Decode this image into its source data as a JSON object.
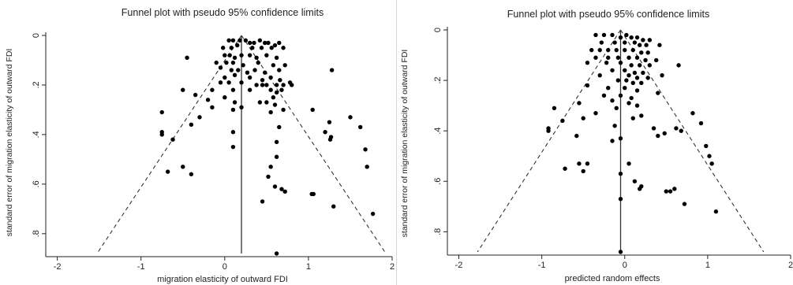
{
  "chart_data": [
    {
      "type": "scatter",
      "title": "Funnel plot with pseudo 95% confidence limits",
      "xlabel": "migration elasticity of outward FDI",
      "ylabel": "standard error of migration elasticity of outward FDI",
      "xlim": [
        -2.1,
        2.0
      ],
      "ylim": [
        0,
        0.88
      ],
      "y_reversed": true,
      "xticks": [
        -2,
        -1,
        0,
        1,
        2
      ],
      "xtick_labels": [
        "-2",
        "-1",
        "0",
        "1",
        "2"
      ],
      "yticks": [
        0,
        0.2,
        0.4,
        0.6,
        0.8
      ],
      "ytick_labels": [
        "0",
        ".2",
        ".4",
        ".6",
        ".8"
      ],
      "pooled_estimate": 0.2,
      "funnel_bottom_se": 0.88,
      "points": [
        [
          0.05,
          0.02
        ],
        [
          0.1,
          0.02
        ],
        [
          0.18,
          0.02
        ],
        [
          0.25,
          0.02
        ],
        [
          0.3,
          0.03
        ],
        [
          0.35,
          0.03
        ],
        [
          0.42,
          0.02
        ],
        [
          0.48,
          0.03
        ],
        [
          0.52,
          0.03
        ],
        [
          0.6,
          0.04
        ],
        [
          0.65,
          0.03
        ],
        [
          -0.02,
          0.05
        ],
        [
          0.08,
          0.05
        ],
        [
          0.15,
          0.04
        ],
        [
          0.33,
          0.05
        ],
        [
          0.44,
          0.05
        ],
        [
          0.56,
          0.05
        ],
        [
          0.7,
          0.05
        ],
        [
          0.0,
          0.08
        ],
        [
          0.06,
          0.08
        ],
        [
          0.12,
          0.09
        ],
        [
          0.2,
          0.08
        ],
        [
          0.3,
          0.08
        ],
        [
          0.38,
          0.09
        ],
        [
          0.5,
          0.08
        ],
        [
          0.62,
          0.09
        ],
        [
          -0.1,
          0.11
        ],
        [
          0.02,
          0.11
        ],
        [
          0.1,
          0.11
        ],
        [
          0.22,
          0.12
        ],
        [
          0.4,
          0.11
        ],
        [
          0.58,
          0.12
        ],
        [
          0.72,
          0.12
        ],
        [
          -0.45,
          0.09
        ],
        [
          -0.05,
          0.13
        ],
        [
          0.08,
          0.14
        ],
        [
          0.16,
          0.14
        ],
        [
          0.27,
          0.15
        ],
        [
          0.36,
          0.14
        ],
        [
          0.48,
          0.15
        ],
        [
          0.65,
          0.14
        ],
        [
          0.0,
          0.17
        ],
        [
          0.12,
          0.16
        ],
        [
          0.3,
          0.17
        ],
        [
          0.45,
          0.18
        ],
        [
          0.55,
          0.17
        ],
        [
          0.66,
          0.18
        ],
        [
          0.78,
          0.19
        ],
        [
          1.28,
          0.14
        ],
        [
          -0.05,
          0.19
        ],
        [
          0.05,
          0.19
        ],
        [
          0.2,
          0.19
        ],
        [
          0.38,
          0.2
        ],
        [
          0.45,
          0.2
        ],
        [
          0.5,
          0.2
        ],
        [
          0.62,
          0.2
        ],
        [
          0.7,
          0.2
        ],
        [
          0.8,
          0.2
        ],
        [
          -0.15,
          0.22
        ],
        [
          0.1,
          0.22
        ],
        [
          0.3,
          0.22
        ],
        [
          0.55,
          0.22
        ],
        [
          0.62,
          0.23
        ],
        [
          0.68,
          0.22
        ],
        [
          0.58,
          0.25
        ],
        [
          -0.5,
          0.22
        ],
        [
          -0.35,
          0.24
        ],
        [
          0.0,
          0.25
        ],
        [
          0.12,
          0.27
        ],
        [
          0.42,
          0.27
        ],
        [
          0.5,
          0.27
        ],
        [
          0.6,
          0.28
        ],
        [
          -0.15,
          0.29
        ],
        [
          0.2,
          0.29
        ],
        [
          -0.2,
          0.26
        ],
        [
          0.1,
          0.3
        ],
        [
          0.7,
          0.3
        ],
        [
          0.55,
          0.31
        ],
        [
          -0.75,
          0.31
        ],
        [
          -0.3,
          0.33
        ],
        [
          -0.4,
          0.36
        ],
        [
          0.65,
          0.37
        ],
        [
          1.05,
          0.3
        ],
        [
          1.5,
          0.33
        ],
        [
          1.25,
          0.35
        ],
        [
          1.62,
          0.37
        ],
        [
          1.2,
          0.39
        ],
        [
          1.27,
          0.41
        ],
        [
          1.26,
          0.42
        ],
        [
          0.1,
          0.39
        ],
        [
          -0.75,
          0.39
        ],
        [
          -0.75,
          0.4
        ],
        [
          -0.62,
          0.42
        ],
        [
          0.1,
          0.45
        ],
        [
          0.62,
          0.43
        ],
        [
          1.68,
          0.46
        ],
        [
          1.7,
          0.53
        ],
        [
          0.62,
          0.49
        ],
        [
          0.55,
          0.53
        ],
        [
          0.52,
          0.57
        ],
        [
          -0.5,
          0.53
        ],
        [
          -0.68,
          0.55
        ],
        [
          -0.4,
          0.56
        ],
        [
          0.6,
          0.61
        ],
        [
          0.72,
          0.63
        ],
        [
          0.68,
          0.62
        ],
        [
          1.04,
          0.64
        ],
        [
          1.06,
          0.64
        ],
        [
          0.45,
          0.67
        ],
        [
          1.3,
          0.69
        ],
        [
          1.77,
          0.72
        ],
        [
          0.62,
          0.88
        ]
      ]
    },
    {
      "type": "scatter",
      "title": "Funnel plot with pseudo 95% confidence limits",
      "xlabel": "predicted random effects",
      "ylabel": "standard error of migration elasticity of outward FDI",
      "xlim": [
        -2.1,
        2.0
      ],
      "ylim": [
        0,
        0.88
      ],
      "y_reversed": true,
      "xticks": [
        -2,
        -1,
        0,
        1,
        2
      ],
      "xtick_labels": [
        "-2",
        "-1",
        "0",
        "1",
        "2"
      ],
      "yticks": [
        0,
        0.2,
        0.4,
        0.6,
        0.8
      ],
      "ytick_labels": [
        "0",
        ".2",
        ".4",
        ".6",
        ".8"
      ],
      "pooled_estimate": -0.05,
      "funnel_bottom_se": 0.88,
      "points": [
        [
          -0.35,
          0.02
        ],
        [
          -0.25,
          0.02
        ],
        [
          -0.15,
          0.02
        ],
        [
          -0.05,
          0.03
        ],
        [
          0.02,
          0.02
        ],
        [
          0.08,
          0.03
        ],
        [
          0.15,
          0.03
        ],
        [
          0.22,
          0.04
        ],
        [
          0.3,
          0.04
        ],
        [
          -0.28,
          0.05
        ],
        [
          -0.12,
          0.05
        ],
        [
          0.0,
          0.05
        ],
        [
          0.12,
          0.05
        ],
        [
          0.18,
          0.06
        ],
        [
          0.26,
          0.06
        ],
        [
          0.42,
          0.06
        ],
        [
          -0.4,
          0.08
        ],
        [
          -0.3,
          0.08
        ],
        [
          -0.2,
          0.08
        ],
        [
          -0.1,
          0.08
        ],
        [
          0.0,
          0.08
        ],
        [
          0.1,
          0.08
        ],
        [
          0.2,
          0.09
        ],
        [
          0.28,
          0.09
        ],
        [
          -0.35,
          0.11
        ],
        [
          -0.2,
          0.11
        ],
        [
          -0.08,
          0.11
        ],
        [
          0.05,
          0.11
        ],
        [
          0.15,
          0.11
        ],
        [
          0.25,
          0.12
        ],
        [
          0.38,
          0.12
        ],
        [
          -0.45,
          0.13
        ],
        [
          -0.22,
          0.13
        ],
        [
          -0.05,
          0.13
        ],
        [
          0.08,
          0.14
        ],
        [
          0.18,
          0.14
        ],
        [
          0.3,
          0.14
        ],
        [
          0.65,
          0.14
        ],
        [
          -0.15,
          0.16
        ],
        [
          0.0,
          0.16
        ],
        [
          0.12,
          0.17
        ],
        [
          0.22,
          0.17
        ],
        [
          -0.3,
          0.18
        ],
        [
          0.05,
          0.18
        ],
        [
          0.15,
          0.19
        ],
        [
          0.28,
          0.19
        ],
        [
          0.45,
          0.18
        ],
        [
          -0.08,
          0.2
        ],
        [
          0.02,
          0.2
        ],
        [
          0.1,
          0.21
        ],
        [
          0.2,
          0.21
        ],
        [
          -0.45,
          0.22
        ],
        [
          -0.2,
          0.23
        ],
        [
          0.0,
          0.23
        ],
        [
          0.15,
          0.24
        ],
        [
          0.4,
          0.25
        ],
        [
          -0.05,
          0.26
        ],
        [
          0.08,
          0.27
        ],
        [
          -0.25,
          0.26
        ],
        [
          -0.15,
          0.28
        ],
        [
          0.05,
          0.29
        ],
        [
          0.15,
          0.3
        ],
        [
          -0.55,
          0.29
        ],
        [
          -0.1,
          0.31
        ],
        [
          -0.35,
          0.33
        ],
        [
          0.2,
          0.34
        ],
        [
          0.1,
          0.35
        ],
        [
          -0.5,
          0.35
        ],
        [
          -0.75,
          0.36
        ],
        [
          -0.85,
          0.31
        ],
        [
          -0.92,
          0.39
        ],
        [
          -0.92,
          0.4
        ],
        [
          -0.12,
          0.38
        ],
        [
          0.35,
          0.39
        ],
        [
          0.48,
          0.41
        ],
        [
          0.4,
          0.42
        ],
        [
          0.62,
          0.39
        ],
        [
          0.82,
          0.33
        ],
        [
          0.92,
          0.37
        ],
        [
          -0.15,
          0.44
        ],
        [
          -0.05,
          0.43
        ],
        [
          -0.58,
          0.42
        ],
        [
          0.98,
          0.46
        ],
        [
          0.68,
          0.4
        ],
        [
          -0.45,
          0.53
        ],
        [
          -0.55,
          0.53
        ],
        [
          -0.72,
          0.55
        ],
        [
          -0.5,
          0.56
        ],
        [
          0.05,
          0.53
        ],
        [
          -0.05,
          0.57
        ],
        [
          0.12,
          0.6
        ],
        [
          0.18,
          0.63
        ],
        [
          0.2,
          0.62
        ],
        [
          0.5,
          0.64
        ],
        [
          0.55,
          0.64
        ],
        [
          0.6,
          0.63
        ],
        [
          0.72,
          0.69
        ],
        [
          1.05,
          0.53
        ],
        [
          1.02,
          0.5
        ],
        [
          1.1,
          0.72
        ],
        [
          -0.05,
          0.67
        ],
        [
          -0.05,
          0.88
        ]
      ]
    }
  ]
}
